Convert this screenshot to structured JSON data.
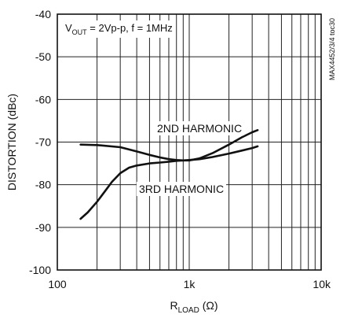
{
  "chart_data": {
    "type": "line",
    "xscale": "log",
    "xlim": [
      100,
      10000
    ],
    "ylim": [
      -100,
      -40
    ],
    "grid": true,
    "xlabel_parts": {
      "main": "R",
      "sub": "LOAD",
      "unit": " (Ω)"
    },
    "ylabel": "DISTORTION (dBc)",
    "xticks": [
      {
        "value": 100,
        "label": "100"
      },
      {
        "value": 1000,
        "label": "1k"
      },
      {
        "value": 10000,
        "label": "10k"
      }
    ],
    "yticks": [
      {
        "value": -40,
        "label": "-40"
      },
      {
        "value": -50,
        "label": "-50"
      },
      {
        "value": -60,
        "label": "-60"
      },
      {
        "value": -70,
        "label": "-70"
      },
      {
        "value": -80,
        "label": "-80"
      },
      {
        "value": -90,
        "label": "-90"
      },
      {
        "value": -100,
        "label": "-100"
      }
    ],
    "annotation_parts": {
      "main": "V",
      "sub": "OUT",
      "rest": " = 2Vp-p, f = 1MHz"
    },
    "side_code": "MAX4452/3/4 toc30",
    "series": [
      {
        "name": "2ND HARMONIC",
        "x": [
          150,
          200,
          300,
          400,
          500,
          600,
          700,
          800,
          900,
          1000,
          1200,
          1500,
          2000,
          2500,
          3000,
          3300
        ],
        "y": [
          -70.6,
          -70.7,
          -71.2,
          -72.2,
          -73.0,
          -73.6,
          -74.0,
          -74.2,
          -74.3,
          -74.3,
          -73.8,
          -72.6,
          -70.6,
          -68.9,
          -67.7,
          -67.2
        ]
      },
      {
        "name": "3RD HARMONIC",
        "x": [
          150,
          170,
          200,
          230,
          260,
          300,
          350,
          400,
          500,
          600,
          700,
          800,
          1000,
          1200,
          1500,
          2000,
          2500,
          3000,
          3300
        ],
        "y": [
          -88.0,
          -86.5,
          -84.0,
          -81.5,
          -79.3,
          -77.3,
          -76.0,
          -75.5,
          -75.0,
          -74.8,
          -74.6,
          -74.4,
          -74.2,
          -74.0,
          -73.5,
          -72.7,
          -72.0,
          -71.4,
          -71.0
        ]
      }
    ]
  }
}
